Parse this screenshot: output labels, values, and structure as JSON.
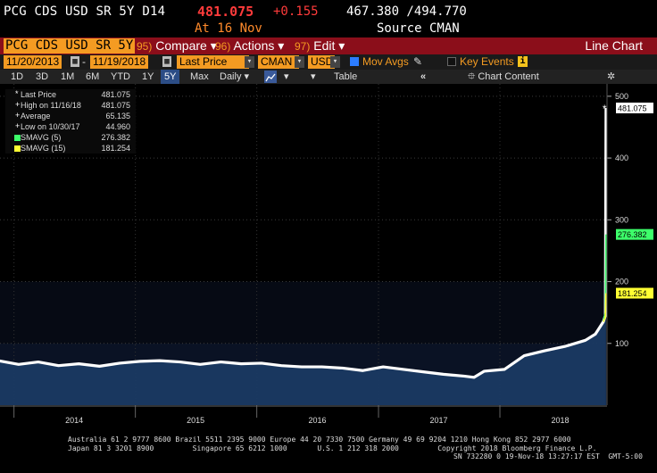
{
  "header": {
    "ticker": "PCG CDS USD SR 5Y D14",
    "last": "481.075",
    "change": "+0.155",
    "range": "467.380 /494.770",
    "at": "At 16 Nov",
    "source": "Source CMAN"
  },
  "menubar": {
    "security": "PCG CDS USD SR 5Y",
    "compare_num": "95)",
    "compare": "Compare",
    "actions_num": "96)",
    "actions": "Actions",
    "edit_num": "97)",
    "edit": "Edit",
    "chart_type": "Line Chart"
  },
  "controls": {
    "start_date": "11/20/2013",
    "end_date": "11/19/2018",
    "field": "Last Price",
    "source": "CMAN",
    "currency": "USD",
    "mov_avgs": "Mov Avgs",
    "key_events": "Key Events"
  },
  "periods": {
    "items": [
      "1D",
      "3D",
      "1M",
      "6M",
      "YTD",
      "1Y",
      "5Y",
      "Max"
    ],
    "selected": "5Y",
    "frequency": "Daily",
    "table": "Table",
    "chart_content": "Chart Content"
  },
  "legend": {
    "items": [
      {
        "name": "Last Price",
        "value": "481.075",
        "color": "#ffffff"
      },
      {
        "name": "High on 11/16/18",
        "value": "481.075",
        "color": "#ffffff"
      },
      {
        "name": "Average",
        "value": "65.135",
        "color": "#ffffff"
      },
      {
        "name": "Low on 10/30/17",
        "value": "44.960",
        "color": "#ffffff"
      },
      {
        "name": "SMAVG (5)",
        "value": "276.382",
        "color": "#3dff6a"
      },
      {
        "name": "SMAVG (15)",
        "value": "181.254",
        "color": "#ffff33"
      }
    ]
  },
  "chart_data": {
    "type": "line",
    "title": "",
    "xlabel": "",
    "ylabel": "",
    "x_ticks": [
      "2014",
      "2015",
      "2016",
      "2017",
      "2018"
    ],
    "y_ticks": [
      100,
      200,
      300,
      400,
      500
    ],
    "ylim": [
      0,
      520
    ],
    "value_tags": [
      {
        "label": "481.075",
        "value": 481.075,
        "color": "#ffffff"
      },
      {
        "label": "276.382",
        "value": 276.382,
        "color": "#3dff6a"
      },
      {
        "label": "181.254",
        "value": 181.254,
        "color": "#ffff33"
      }
    ],
    "series": [
      {
        "name": "Last Price",
        "color": "#ffffff",
        "x": [
          "2013-11",
          "2014-01",
          "2014-03",
          "2014-05",
          "2014-07",
          "2014-09",
          "2014-11",
          "2015-01",
          "2015-03",
          "2015-05",
          "2015-07",
          "2015-09",
          "2015-11",
          "2016-01",
          "2016-03",
          "2016-05",
          "2016-07",
          "2016-09",
          "2016-11",
          "2017-01",
          "2017-03",
          "2017-05",
          "2017-07",
          "2017-09",
          "2017-10",
          "2017-11",
          "2018-01",
          "2018-03",
          "2018-05",
          "2018-07",
          "2018-09",
          "2018-10",
          "2018-11-08",
          "2018-11-14",
          "2018-11-16"
        ],
        "y": [
          72,
          66,
          70,
          64,
          67,
          63,
          68,
          71,
          72,
          70,
          66,
          70,
          67,
          68,
          64,
          62,
          62,
          60,
          56,
          62,
          58,
          54,
          50,
          47,
          45,
          55,
          58,
          80,
          88,
          95,
          105,
          115,
          135,
          145,
          481
        ]
      },
      {
        "name": "SMAVG (5)",
        "color": "#3dff6a",
        "x": [
          "2018-11-08",
          "2018-11-14",
          "2018-11-16"
        ],
        "y": [
          135,
          150,
          276.382
        ]
      },
      {
        "name": "SMAVG (15)",
        "color": "#ffff33",
        "x": [
          "2018-11-08",
          "2018-11-14",
          "2018-11-16"
        ],
        "y": [
          135,
          142,
          181.254
        ]
      }
    ]
  },
  "footer": {
    "line1": "Australia 61 2 9777 8600 Brazil 5511 2395 9000 Europe 44 20 7330 7500 Germany 49 69 9204 1210 Hong Kong 852 2977 6000",
    "line2": "Japan 81 3 3201 8900         Singapore 65 6212 1000       U.S. 1 212 318 2000         Copyright 2018 Bloomberg Finance L.P.",
    "line3": "SN 732280 0 19-Nov-18 13:27:17 EST  GMT-5:00"
  }
}
